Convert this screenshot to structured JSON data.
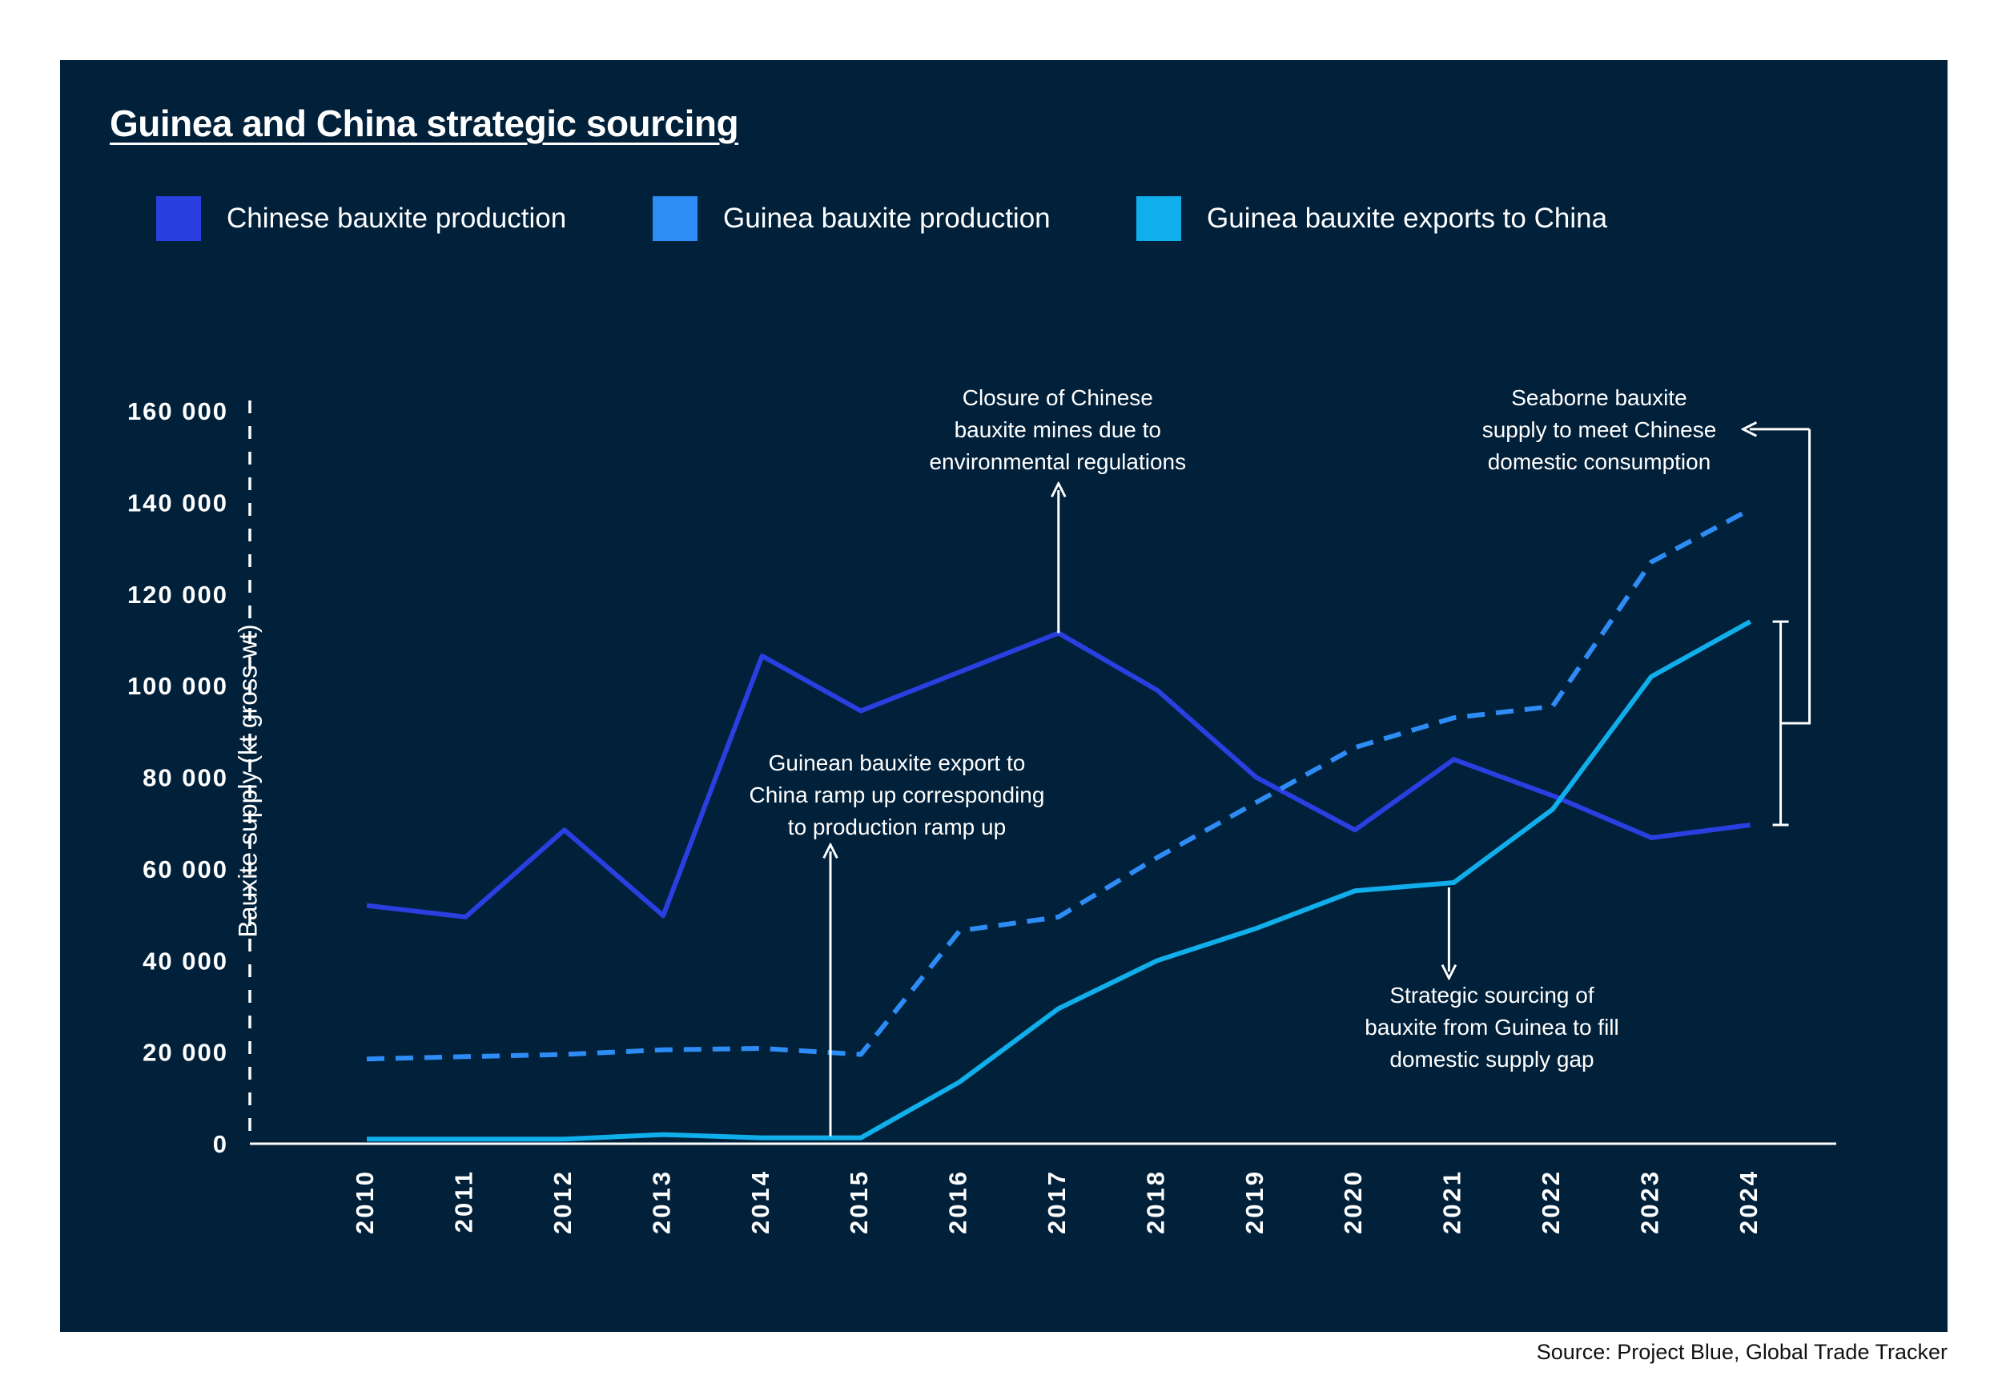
{
  "title": "Guinea and China strategic sourcing",
  "source": "Source: Project Blue, Global Trade Tracker",
  "colors": {
    "background": "#01203a",
    "chinese_production": "#2a3fe0",
    "guinea_production": "#2d8cf5",
    "guinea_exports": "#10aeea",
    "axis": "#ffffff",
    "text": "#ffffff"
  },
  "legend": {
    "placement": "top",
    "items": [
      {
        "label": "Chinese bauxite production",
        "color": "#2a3fe0"
      },
      {
        "label": "Guinea bauxite production",
        "color": "#2d8cf5"
      },
      {
        "label": "Guinea bauxite exports to China",
        "color": "#10aeea"
      }
    ]
  },
  "chart_data": {
    "type": "line",
    "title": "Guinea and China strategic sourcing",
    "xlabel": "",
    "ylabel": "Bauxite supply (kt gross wt)",
    "x": [
      "2010",
      "2011",
      "2012",
      "2013",
      "2014",
      "2015",
      "2016",
      "2017",
      "2018",
      "2019",
      "2020",
      "2021",
      "2022",
      "2023",
      "2024"
    ],
    "ylim": [
      0,
      160000
    ],
    "yticks": [
      0,
      20000,
      40000,
      60000,
      80000,
      100000,
      120000,
      140000,
      160000
    ],
    "ytick_labels": [
      "0",
      "20 000",
      "40 000",
      "60 000",
      "80 000",
      "100 000",
      "120 000",
      "140 000",
      "160 000"
    ],
    "grid": false,
    "series": [
      {
        "name": "Chinese bauxite production",
        "style": "solid",
        "color": "#2a3fe0",
        "values": [
          52000,
          49500,
          68500,
          49800,
          106500,
          94500,
          103000,
          111500,
          99000,
          80000,
          68500,
          83900,
          76000,
          66800,
          69600
        ]
      },
      {
        "name": "Guinea bauxite production",
        "style": "dashed",
        "color": "#2d8cf5",
        "values": [
          18500,
          19000,
          19500,
          20500,
          20800,
          19500,
          46500,
          49500,
          62500,
          74500,
          86500,
          93000,
          95500,
          127000,
          138500
        ]
      },
      {
        "name": "Guinea bauxite exports to China",
        "style": "solid",
        "color": "#10aeea",
        "values": [
          1000,
          1000,
          1000,
          2000,
          1300,
          1300,
          13500,
          29500,
          40000,
          47000,
          55200,
          57000,
          73000,
          102000,
          114000
        ]
      }
    ],
    "annotations": [
      {
        "text": [
          "Closure of Chinese",
          "bauxite mines due to",
          "environmental regulations"
        ],
        "x": "2017",
        "y": 111500,
        "arrow": "up"
      },
      {
        "text": [
          "Seaborne bauxite",
          "supply to meet Chinese",
          "domestic consumption"
        ],
        "x": "2024",
        "y": 156000,
        "arrow": "left-bracket"
      },
      {
        "text": [
          "Guinean bauxite export to",
          "China ramp up corresponding",
          "to production ramp up"
        ],
        "x": "2015",
        "y": 1300,
        "arrow": "up"
      },
      {
        "text": [
          "Strategic sourcing of",
          "bauxite from Guinea to fill",
          "domestic supply gap"
        ],
        "x": "2021",
        "y": 57000,
        "arrow": "down"
      }
    ]
  }
}
